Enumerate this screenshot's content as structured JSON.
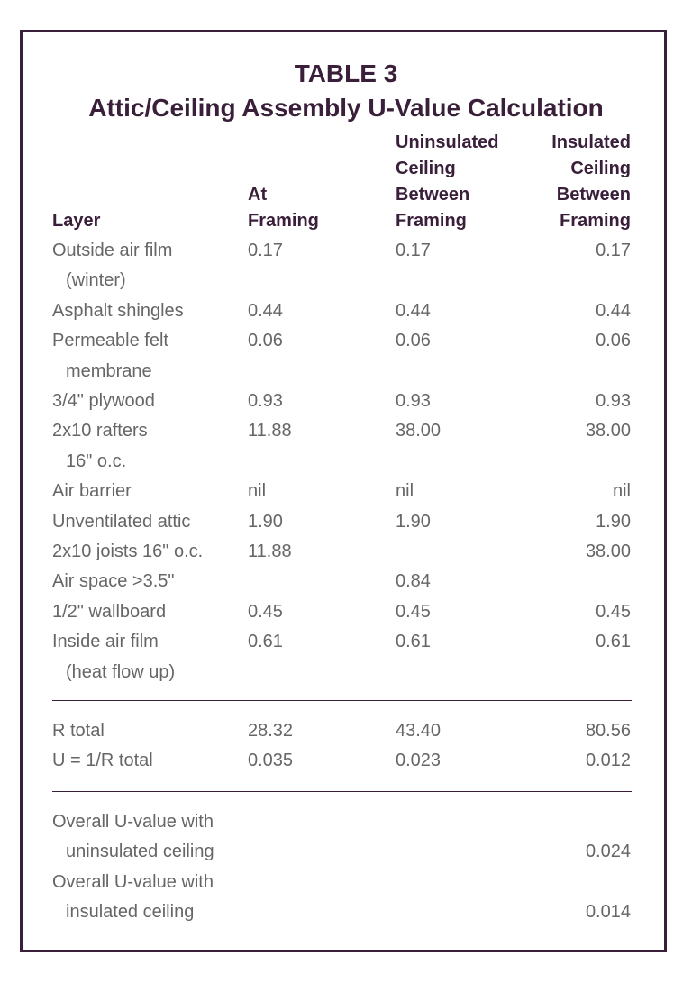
{
  "title": "TABLE 3",
  "subtitle": "Attic/Ceiling Assembly U-Value Calculation",
  "table": {
    "columns": [
      [
        "Layer"
      ],
      [
        "At",
        "Framing"
      ],
      [
        "Uninsulated",
        "Ceiling",
        "Between",
        "Framing"
      ],
      [
        "Insulated",
        "Ceiling",
        "Between",
        "Framing"
      ]
    ],
    "rows": [
      {
        "label": [
          "Outside air film",
          "(winter)"
        ],
        "cells": [
          "0.17",
          "0.17",
          "0.17"
        ]
      },
      {
        "label": [
          "Asphalt shingles"
        ],
        "cells": [
          "0.44",
          "0.44",
          "0.44"
        ]
      },
      {
        "label": [
          "Permeable felt",
          "membrane"
        ],
        "cells": [
          "0.06",
          "0.06",
          "0.06"
        ]
      },
      {
        "label": [
          "3/4\" plywood"
        ],
        "cells": [
          "0.93",
          "0.93",
          "0.93"
        ]
      },
      {
        "label": [
          "2x10 rafters",
          "16\" o.c."
        ],
        "cells": [
          "11.88",
          "38.00",
          "38.00"
        ]
      },
      {
        "label": [
          "Air barrier"
        ],
        "cells": [
          "nil",
          "nil",
          "nil"
        ]
      },
      {
        "label": [
          "Unventilated attic"
        ],
        "cells": [
          "1.90",
          "1.90",
          "1.90"
        ]
      },
      {
        "label": [
          "2x10 joists 16\" o.c."
        ],
        "cells": [
          "11.88",
          null,
          "38.00"
        ]
      },
      {
        "label": [
          "Air space >3.5\""
        ],
        "cells": [
          null,
          "0.84",
          null
        ]
      },
      {
        "label": [
          "1/2\" wallboard"
        ],
        "cells": [
          "0.45",
          "0.45",
          "0.45"
        ]
      },
      {
        "label": [
          "Inside air film",
          "(heat flow up)"
        ],
        "cells": [
          "0.61",
          "0.61",
          "0.61"
        ]
      }
    ],
    "totals": [
      {
        "label": [
          "R total"
        ],
        "cells": [
          "28.32",
          "43.40",
          "80.56"
        ]
      },
      {
        "label": [
          "U = 1/R total"
        ],
        "cells": [
          "0.035",
          "0.023",
          "0.012"
        ]
      }
    ],
    "overall": [
      {
        "label": [
          "Overall U-value with",
          "uninsulated ceiling"
        ],
        "value": "0.024"
      },
      {
        "label": [
          "Overall U-value with",
          "insulated ceiling"
        ],
        "value": "0.014"
      }
    ]
  }
}
